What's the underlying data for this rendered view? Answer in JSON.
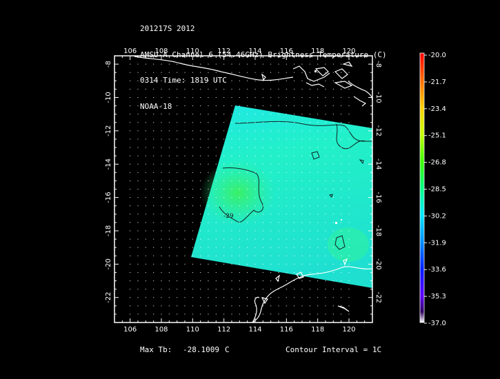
{
  "header": {
    "line1": "201217S 2012",
    "line2": "AMSU-A Channel 6 (54.46GHz) Brightness Temperature (C)",
    "line3": "0314 Time: 1819 UTC",
    "line4": "NOAA-18"
  },
  "map": {
    "lon_range": [
      105,
      121.5
    ],
    "lat_range": [
      -23.5,
      -7.5
    ],
    "lon_ticks": [
      "106",
      "108",
      "110",
      "112",
      "114",
      "116",
      "118",
      "120"
    ],
    "lat_ticks": [
      "-8",
      "-10",
      "-12",
      "-14",
      "-16",
      "-18",
      "-20",
      "-22"
    ],
    "contour_label": "-29"
  },
  "colorbar": {
    "labels": [
      "-20.0",
      "-21.7",
      "-23.4",
      "-25.1",
      "-26.8",
      "-28.5",
      "-30.2",
      "-31.9",
      "-33.6",
      "-35.3",
      "-37.0"
    ],
    "colors": [
      "#ff0000",
      "#ff6a00",
      "#ffd000",
      "#d0ff00",
      "#40ff00",
      "#00ff90",
      "#00e8ff",
      "#0090ff",
      "#0020ff",
      "#7000ff",
      "#ffffff"
    ]
  },
  "footer": {
    "max_tb_label": "Max Tb:",
    "max_tb_value": "-28.1009",
    "max_tb_unit": "C",
    "contour_interval": "Contour Interval = 1C"
  }
}
